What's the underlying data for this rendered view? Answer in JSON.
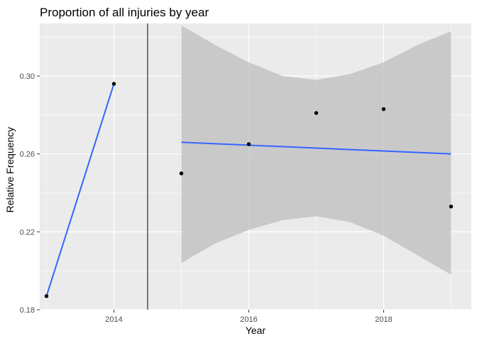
{
  "chart_data": {
    "type": "scatter",
    "title": "Proportion of all injuries by year",
    "xlabel": "Year",
    "ylabel": "Relative Frequency",
    "xlim": [
      2012.9,
      2019.3
    ],
    "ylim": [
      0.18,
      0.327
    ],
    "x_ticks": [
      2014,
      2016,
      2018
    ],
    "x_tick_labels": [
      "2014",
      "2016",
      "2018"
    ],
    "y_ticks": [
      0.18,
      0.22,
      0.26,
      0.3
    ],
    "y_tick_labels": [
      "0.18",
      "0.22",
      "0.26",
      "0.30"
    ],
    "grid": true,
    "points": [
      {
        "x": 2013,
        "y": 0.187
      },
      {
        "x": 2014,
        "y": 0.296
      },
      {
        "x": 2015,
        "y": 0.25
      },
      {
        "x": 2016,
        "y": 0.265
      },
      {
        "x": 2017,
        "y": 0.281
      },
      {
        "x": 2018,
        "y": 0.283
      },
      {
        "x": 2019,
        "y": 0.233
      }
    ],
    "vline_x": 2014.5,
    "fit_segments": [
      {
        "x": [
          2013,
          2014
        ],
        "y": [
          0.187,
          0.296
        ]
      },
      {
        "x": [
          2015,
          2019
        ],
        "y": [
          0.266,
          0.26
        ]
      }
    ],
    "confidence_band": {
      "x": [
        2015,
        2015.5,
        2016,
        2016.5,
        2017,
        2017.5,
        2018,
        2018.5,
        2019
      ],
      "upper": [
        0.326,
        0.316,
        0.307,
        0.3,
        0.298,
        0.301,
        0.307,
        0.316,
        0.323
      ],
      "lower": [
        0.204,
        0.214,
        0.221,
        0.226,
        0.228,
        0.225,
        0.218,
        0.208,
        0.198
      ]
    },
    "colors": {
      "panel": "#ebebeb",
      "grid": "#ffffff",
      "point": "#000000",
      "fit_line": "#3366ff",
      "band": "#bdbdbd",
      "vline": "#000000"
    }
  }
}
